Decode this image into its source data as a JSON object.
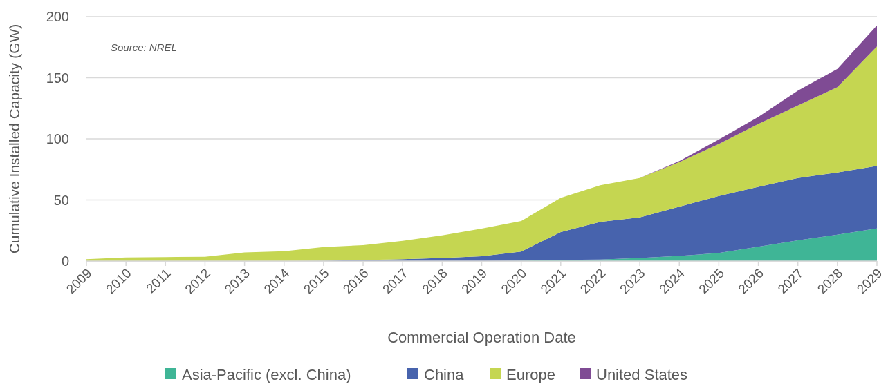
{
  "chart_data": {
    "type": "area",
    "stacked": true,
    "xlabel": "Commercial Operation Date",
    "ylabel": "Cumulative Installed Capacity (GW)",
    "annotations": [
      "Source: NREL"
    ],
    "categories": [
      "2009",
      "2010",
      "2011",
      "2012",
      "2013",
      "2014",
      "2015",
      "2016",
      "2017",
      "2018",
      "2019",
      "2020",
      "2021",
      "2022",
      "2023",
      "2024",
      "2025",
      "2026",
      "2027",
      "2028",
      "2029"
    ],
    "series": [
      {
        "name": "Asia-Pacific (excl. China)",
        "color": "#3fb596",
        "values": [
          0,
          0,
          0,
          0,
          0,
          0,
          0,
          0,
          0,
          0,
          0,
          0.3,
          1,
          1.3,
          2.5,
          4.2,
          6.6,
          11.7,
          17,
          21.6,
          26.7
        ]
      },
      {
        "name": "China",
        "color": "#4763ad",
        "values": [
          0,
          0,
          0,
          0,
          0,
          0,
          0.3,
          0.8,
          1.5,
          2.5,
          4,
          7.5,
          22.7,
          30.7,
          33.3,
          40.3,
          46.6,
          49.1,
          51,
          50.9,
          51.1
        ]
      },
      {
        "name": "Europe",
        "color": "#c5d651",
        "values": [
          1.5,
          3,
          3.3,
          3.6,
          7,
          8,
          11.2,
          12.2,
          15,
          18.5,
          22.5,
          25,
          28,
          30,
          32.2,
          36.4,
          42.6,
          51.3,
          59.3,
          69.7,
          97.8
        ]
      },
      {
        "name": "United States",
        "color": "#7f4b94",
        "values": [
          0,
          0,
          0,
          0,
          0,
          0,
          0,
          0,
          0,
          0,
          0,
          0,
          0,
          0,
          0,
          0.9,
          3.6,
          5.9,
          12.1,
          15,
          17.2
        ]
      }
    ],
    "ylim": [
      0,
      200
    ],
    "yticks": [
      0,
      50,
      100,
      150,
      200
    ],
    "grid": "y",
    "legend": "bottom"
  }
}
